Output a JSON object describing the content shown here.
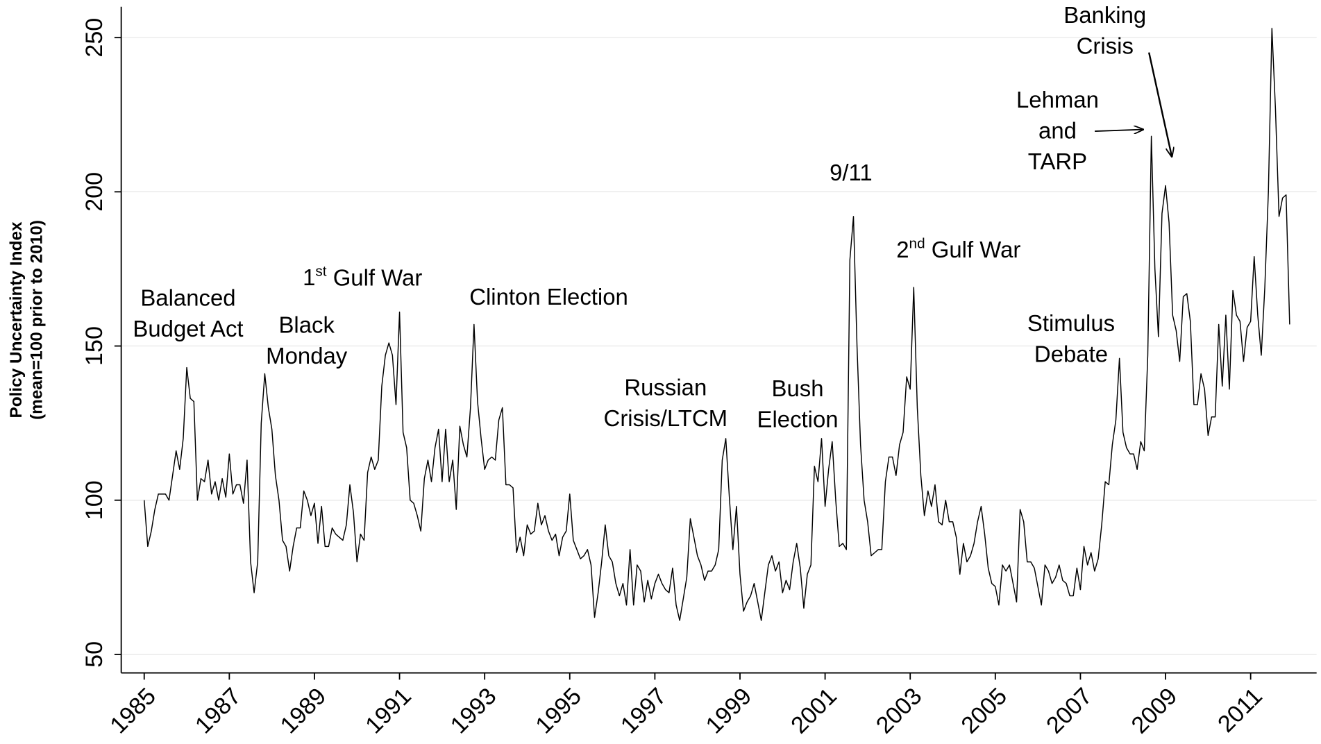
{
  "chart_data": {
    "type": "line",
    "ylabel": [
      "Policy Uncertainty Index",
      "(mean=100 prior to 2010)"
    ],
    "xlim": [
      1984.46,
      2012.55
    ],
    "ylim": [
      44,
      260
    ],
    "xticks": [
      1985,
      1987,
      1989,
      1991,
      1993,
      1995,
      1997,
      1999,
      2001,
      2003,
      2005,
      2007,
      2009,
      2011
    ],
    "yticks": [
      50,
      100,
      150,
      200,
      250
    ],
    "grid": true,
    "annotations": [
      {
        "lines": [
          "Balanced",
          "Budget Act"
        ]
      },
      {
        "lines": [
          "Black",
          "Monday"
        ]
      },
      {
        "lines": [
          "1st Gulf War"
        ]
      },
      {
        "lines": [
          "Clinton Election"
        ]
      },
      {
        "lines": [
          "Russian",
          "Crisis/LTCM"
        ]
      },
      {
        "lines": [
          "Bush",
          "Election"
        ]
      },
      {
        "lines": [
          "9/11"
        ]
      },
      {
        "lines": [
          "2nd Gulf War"
        ]
      },
      {
        "lines": [
          "Stimulus",
          "Debate"
        ]
      },
      {
        "lines": [
          "Lehman",
          "and",
          "TARP"
        ]
      },
      {
        "lines": [
          "Banking",
          "Crisis"
        ]
      }
    ],
    "series": [
      {
        "color": "#000000",
        "x": [
          1985,
          1985.083,
          1985.167,
          1985.25,
          1985.333,
          1985.417,
          1985.5,
          1985.583,
          1985.667,
          1985.75,
          1985.833,
          1985.917,
          1986,
          1986.083,
          1986.167,
          1986.25,
          1986.333,
          1986.417,
          1986.5,
          1986.583,
          1986.667,
          1986.75,
          1986.833,
          1986.917,
          1987,
          1987.083,
          1987.167,
          1987.25,
          1987.333,
          1987.417,
          1987.5,
          1987.583,
          1987.667,
          1987.75,
          1987.833,
          1987.917,
          1988,
          1988.083,
          1988.167,
          1988.25,
          1988.333,
          1988.417,
          1988.5,
          1988.583,
          1988.667,
          1988.75,
          1988.833,
          1988.917,
          1989,
          1989.083,
          1989.167,
          1989.25,
          1989.333,
          1989.417,
          1989.5,
          1989.583,
          1989.667,
          1989.75,
          1989.833,
          1989.917,
          1990,
          1990.083,
          1990.167,
          1990.25,
          1990.333,
          1990.417,
          1990.5,
          1990.583,
          1990.667,
          1990.75,
          1990.833,
          1990.917,
          1991,
          1991.083,
          1991.167,
          1991.25,
          1991.333,
          1991.417,
          1991.5,
          1991.583,
          1991.667,
          1991.75,
          1991.833,
          1991.917,
          1992,
          1992.083,
          1992.167,
          1992.25,
          1992.333,
          1992.417,
          1992.5,
          1992.583,
          1992.667,
          1992.75,
          1992.833,
          1992.917,
          1993,
          1993.083,
          1993.167,
          1993.25,
          1993.333,
          1993.417,
          1993.5,
          1993.583,
          1993.667,
          1993.75,
          1993.833,
          1993.917,
          1994,
          1994.083,
          1994.167,
          1994.25,
          1994.333,
          1994.417,
          1994.5,
          1994.583,
          1994.667,
          1994.75,
          1994.833,
          1994.917,
          1995,
          1995.083,
          1995.167,
          1995.25,
          1995.333,
          1995.417,
          1995.5,
          1995.583,
          1995.667,
          1995.75,
          1995.833,
          1995.917,
          1996,
          1996.083,
          1996.167,
          1996.25,
          1996.333,
          1996.417,
          1996.5,
          1996.583,
          1996.667,
          1996.75,
          1996.833,
          1996.917,
          1997,
          1997.083,
          1997.167,
          1997.25,
          1997.333,
          1997.417,
          1997.5,
          1997.583,
          1997.667,
          1997.75,
          1997.833,
          1997.917,
          1998,
          1998.083,
          1998.167,
          1998.25,
          1998.333,
          1998.417,
          1998.5,
          1998.583,
          1998.667,
          1998.75,
          1998.833,
          1998.917,
          1999,
          1999.083,
          1999.167,
          1999.25,
          1999.333,
          1999.417,
          1999.5,
          1999.583,
          1999.667,
          1999.75,
          1999.833,
          1999.917,
          2000,
          2000.083,
          2000.167,
          2000.25,
          2000.333,
          2000.417,
          2000.5,
          2000.583,
          2000.667,
          2000.75,
          2000.833,
          2000.917,
          2001,
          2001.083,
          2001.167,
          2001.25,
          2001.333,
          2001.417,
          2001.5,
          2001.583,
          2001.667,
          2001.75,
          2001.833,
          2001.917,
          2002,
          2002.083,
          2002.167,
          2002.25,
          2002.333,
          2002.417,
          2002.5,
          2002.583,
          2002.667,
          2002.75,
          2002.833,
          2002.917,
          2003,
          2003.083,
          2003.167,
          2003.25,
          2003.333,
          2003.417,
          2003.5,
          2003.583,
          2003.667,
          2003.75,
          2003.833,
          2003.917,
          2004,
          2004.083,
          2004.167,
          2004.25,
          2004.333,
          2004.417,
          2004.5,
          2004.583,
          2004.667,
          2004.75,
          2004.833,
          2004.917,
          2005,
          2005.083,
          2005.167,
          2005.25,
          2005.333,
          2005.417,
          2005.5,
          2005.583,
          2005.667,
          2005.75,
          2005.833,
          2005.917,
          2006,
          2006.083,
          2006.167,
          2006.25,
          2006.333,
          2006.417,
          2006.5,
          2006.583,
          2006.667,
          2006.75,
          2006.833,
          2006.917,
          2007,
          2007.083,
          2007.167,
          2007.25,
          2007.333,
          2007.417,
          2007.5,
          2007.583,
          2007.667,
          2007.75,
          2007.833,
          2007.917,
          2008,
          2008.083,
          2008.167,
          2008.25,
          2008.333,
          2008.417,
          2008.5,
          2008.583,
          2008.667,
          2008.75,
          2008.833,
          2008.917,
          2009,
          2009.083,
          2009.167,
          2009.25,
          2009.333,
          2009.417,
          2009.5,
          2009.583,
          2009.667,
          2009.75,
          2009.833,
          2009.917,
          2010,
          2010.083,
          2010.167,
          2010.25,
          2010.333,
          2010.417,
          2010.5,
          2010.583,
          2010.667,
          2010.75,
          2010.833,
          2010.917,
          2011,
          2011.083,
          2011.167,
          2011.25,
          2011.333,
          2011.417,
          2011.5,
          2011.583,
          2011.667,
          2011.75,
          2011.833,
          2011.917
        ],
        "values": [
          100,
          85,
          90,
          97,
          102,
          102,
          102,
          100,
          108,
          116,
          110,
          120,
          143,
          133,
          132,
          100,
          107,
          106,
          113,
          102,
          106,
          100,
          107,
          101,
          115,
          102,
          105,
          105,
          99,
          113,
          80,
          70,
          80,
          125,
          141,
          130,
          123,
          108,
          100,
          87,
          85,
          77,
          85,
          91,
          91,
          103,
          100,
          95,
          99,
          86,
          98,
          85,
          85,
          91,
          89,
          88,
          87,
          92,
          105,
          96,
          80,
          89,
          87,
          109,
          114,
          110,
          113,
          137,
          147,
          151,
          147,
          131,
          161,
          122,
          117,
          100,
          99,
          95,
          90,
          107,
          113,
          106,
          117,
          123,
          106,
          123,
          106,
          113,
          97,
          124,
          118,
          114,
          130,
          157,
          132,
          120,
          110,
          113,
          114,
          113,
          126,
          130,
          105,
          105,
          104,
          83,
          88,
          82,
          92,
          89,
          90,
          99,
          92,
          95,
          90,
          87,
          89,
          82,
          88,
          90,
          102,
          87,
          84,
          81,
          82,
          84,
          79,
          62,
          70,
          80,
          92,
          82,
          80,
          73,
          69,
          73,
          66,
          84,
          66,
          79,
          77,
          67,
          74,
          68,
          73,
          76,
          73,
          71,
          70,
          78,
          66,
          61,
          68,
          75,
          94,
          88,
          82,
          79,
          74,
          77,
          77,
          79,
          84,
          113,
          120,
          101,
          84,
          98,
          76,
          64,
          67,
          69,
          73,
          67,
          61,
          70,
          79,
          82,
          77,
          80,
          70,
          74,
          71,
          80,
          86,
          78,
          65,
          76,
          79,
          111,
          106,
          120,
          98,
          110,
          119,
          100,
          85,
          86,
          84,
          178,
          192,
          150,
          118,
          100,
          93,
          82,
          83,
          84,
          84,
          106,
          114,
          114,
          108,
          118,
          122,
          140,
          136,
          169,
          130,
          108,
          95,
          103,
          98,
          105,
          93,
          92,
          100,
          93,
          93,
          88,
          76,
          86,
          80,
          82,
          86,
          93,
          98,
          89,
          78,
          73,
          72,
          66,
          79,
          77,
          79,
          73,
          67,
          97,
          93,
          80,
          80,
          78,
          72,
          66,
          79,
          77,
          73,
          75,
          79,
          74,
          73,
          69,
          69,
          78,
          71,
          85,
          79,
          83,
          77,
          81,
          92,
          106,
          105,
          118,
          126,
          146,
          122,
          117,
          115,
          115,
          110,
          119,
          116,
          147,
          218,
          175,
          153,
          193,
          202,
          190,
          160,
          155,
          145,
          166,
          167,
          158,
          131,
          131,
          141,
          136,
          121,
          127,
          127,
          157,
          137,
          160,
          136,
          168,
          160,
          158,
          145,
          156,
          158,
          179,
          160,
          147,
          169,
          200,
          253,
          227,
          192,
          198,
          199,
          157
        ]
      }
    ]
  }
}
